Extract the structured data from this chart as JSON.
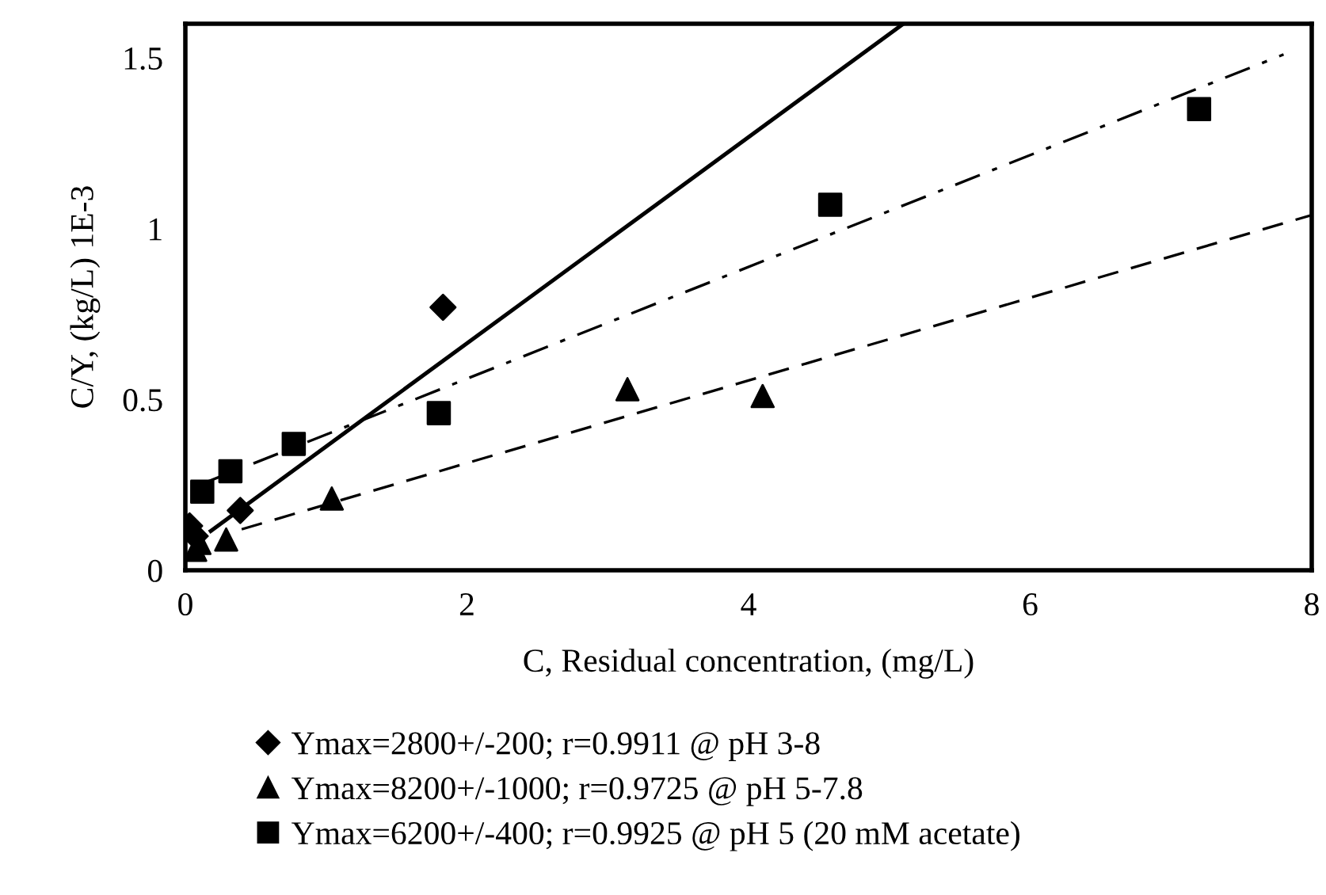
{
  "chart_data": {
    "type": "scatter",
    "xlabel": "C, Residual concentration, (mg/L)",
    "ylabel": "C/Y, (kg/L) 1E-3",
    "xlim": [
      0,
      8
    ],
    "ylim": [
      0,
      1.6
    ],
    "xticks": [
      0,
      2,
      4,
      6,
      8
    ],
    "yticks": [
      0,
      0.5,
      1,
      1.5
    ],
    "grid": false,
    "legend": "bottom",
    "series": [
      {
        "name": "Ymax=2800+/-200; r=0.9911 @ pH 3-8",
        "color": "#000000",
        "marker": "diamond",
        "x": [
          0.03,
          0.07,
          0.39,
          1.83
        ],
        "values": [
          0.13,
          0.1,
          0.175,
          0.77
        ]
      },
      {
        "name": "Ymax=8200+/-1000; r=0.9725 @ pH 5-7.8",
        "color": "#000000",
        "marker": "triangle",
        "x": [
          0.07,
          0.1,
          0.29,
          1.04,
          3.14,
          4.1
        ],
        "values": [
          0.06,
          0.08,
          0.09,
          0.21,
          0.53,
          0.51
        ]
      },
      {
        "name": "Ymax=6200+/-400; r=0.9925 @ pH 5 (20 mM acetate)",
        "color": "#000000",
        "marker": "square",
        "x": [
          0.12,
          0.32,
          0.77,
          1.8,
          4.58,
          7.2
        ],
        "values": [
          0.23,
          0.29,
          0.37,
          0.46,
          1.07,
          1.35
        ]
      },
      {
        "type": "line",
        "color": "#000000",
        "line_style": "solid",
        "x": [
          0.18,
          5.1
        ],
        "values": [
          0.115,
          1.6
        ]
      },
      {
        "type": "line",
        "color": "#000000",
        "line_style": "dashed",
        "x": [
          0.4,
          8
        ],
        "values": [
          0.12,
          1.04
        ]
      },
      {
        "type": "line",
        "color": "#000000",
        "line_style": "dashdot",
        "x": [
          0.1,
          7.8
        ],
        "values": [
          0.25,
          1.51
        ]
      }
    ]
  }
}
